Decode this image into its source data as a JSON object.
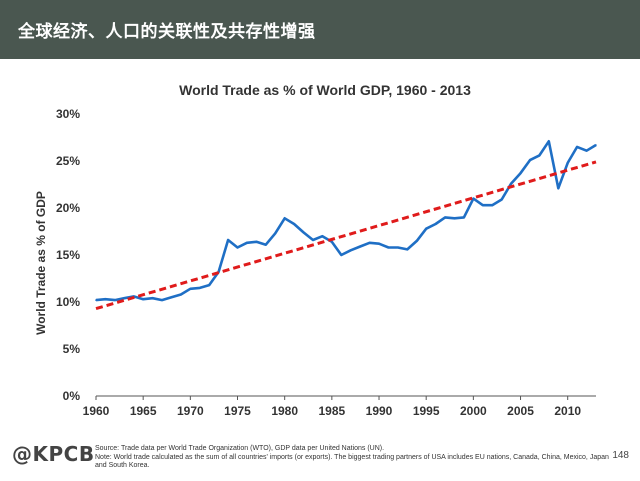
{
  "header": {
    "title": "全球经济、人口的关联性及共存性增强"
  },
  "chart_data": {
    "type": "line",
    "title": "World Trade as % of World GDP, 1960 - 2013",
    "xlabel": "",
    "ylabel": "World Trade as % of GDP",
    "xlim": [
      1960,
      2013
    ],
    "ylim": [
      0,
      30
    ],
    "x_ticks": [
      "1960",
      "1965",
      "1970",
      "1975",
      "1980",
      "1985",
      "1990",
      "1995",
      "2000",
      "2005",
      "2010"
    ],
    "y_ticks": [
      "0%",
      "5%",
      "10%",
      "15%",
      "20%",
      "25%",
      "30%"
    ],
    "grid": false,
    "legend": "none",
    "series": [
      {
        "color": "#1f6fc5",
        "x": [
          1960,
          1961,
          1962,
          1963,
          1964,
          1965,
          1966,
          1967,
          1968,
          1969,
          1970,
          1971,
          1972,
          1973,
          1974,
          1975,
          1976,
          1977,
          1978,
          1979,
          1980,
          1981,
          1982,
          1983,
          1984,
          1985,
          1986,
          1987,
          1988,
          1989,
          1990,
          1991,
          1992,
          1993,
          1994,
          1995,
          1996,
          1997,
          1998,
          1999,
          2000,
          2001,
          2002,
          2003,
          2004,
          2005,
          2006,
          2007,
          2008,
          2009,
          2010,
          2011,
          2012,
          2013
        ],
        "y": [
          10.2,
          10.3,
          10.2,
          10.4,
          10.6,
          10.3,
          10.4,
          10.2,
          10.5,
          10.8,
          11.4,
          11.5,
          11.8,
          13.2,
          16.6,
          15.8,
          16.3,
          16.4,
          16.1,
          17.3,
          18.9,
          18.3,
          17.4,
          16.6,
          17.0,
          16.4,
          15.0,
          15.5,
          15.9,
          16.3,
          16.2,
          15.8,
          15.8,
          15.6,
          16.5,
          17.8,
          18.3,
          19.0,
          18.9,
          19.0,
          21.0,
          20.3,
          20.3,
          20.9,
          22.6,
          23.7,
          25.1,
          25.6,
          27.1,
          22.1,
          24.8,
          26.5,
          26.1,
          26.7
        ]
      },
      {
        "color": "#e01b1b",
        "dashed": true,
        "x": [
          1960,
          2013
        ],
        "y": [
          9.3,
          24.9
        ]
      }
    ]
  },
  "footer": {
    "logo": "@KPCB",
    "source": "Source: Trade data per World Trade Organization (WTO), GDP data per United Nations (UN).",
    "note": "Note: World trade calculated as the sum of all countries' imports (or exports). The biggest trading partners of USA includes EU nations, Canada, China, Mexico, Japan and South Korea.",
    "page": "148"
  }
}
